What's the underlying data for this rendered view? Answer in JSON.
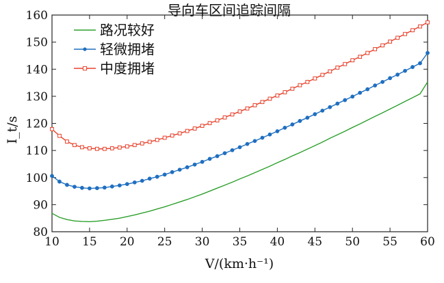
{
  "chart_data": {
    "type": "line",
    "title": "导向车区间追踪间隔",
    "xlabel": "V/(km·h⁻¹)",
    "ylabel": "I_t/s",
    "xlim": [
      10,
      60
    ],
    "ylim": [
      80,
      160
    ],
    "x_ticks": [
      10,
      15,
      20,
      25,
      30,
      35,
      40,
      45,
      50,
      55,
      60
    ],
    "y_ticks": [
      80,
      90,
      100,
      110,
      120,
      130,
      140,
      150,
      160
    ],
    "grid": false,
    "legend_position": "top-left",
    "x": [
      10,
      11,
      12,
      13,
      14,
      15,
      16,
      17,
      18,
      19,
      20,
      21,
      22,
      23,
      24,
      25,
      26,
      27,
      28,
      29,
      30,
      31,
      32,
      33,
      34,
      35,
      36,
      37,
      38,
      39,
      40,
      41,
      42,
      43,
      44,
      45,
      46,
      47,
      48,
      49,
      50,
      51,
      52,
      53,
      54,
      55,
      56,
      57,
      58,
      59,
      60
    ],
    "series": [
      {
        "name": "路况较好",
        "color": "#2ca02c",
        "marker": "none",
        "values": [
          86.8,
          85.3,
          84.5,
          84.0,
          83.8,
          83.7,
          83.9,
          84.2,
          84.6,
          85.0,
          85.6,
          86.2,
          86.9,
          87.6,
          88.4,
          89.2,
          90.1,
          91.0,
          91.9,
          92.9,
          93.9,
          95.0,
          96.1,
          97.2,
          98.3,
          99.5,
          100.6,
          101.8,
          103.0,
          104.2,
          105.5,
          106.7,
          108.0,
          109.2,
          110.5,
          111.8,
          113.1,
          114.5,
          115.8,
          117.1,
          118.5,
          119.8,
          121.2,
          122.6,
          123.9,
          125.3,
          126.7,
          128.1,
          129.5,
          130.9,
          135.3
        ]
      },
      {
        "name": "轻微拥堵",
        "color": "#1f6fc0",
        "marker": "circle",
        "values": [
          100.6,
          98.5,
          97.3,
          96.6,
          96.2,
          96.0,
          96.1,
          96.3,
          96.7,
          97.1,
          97.6,
          98.2,
          98.8,
          99.6,
          100.3,
          101.1,
          102.0,
          102.9,
          103.8,
          104.8,
          105.8,
          106.9,
          107.9,
          109.0,
          110.1,
          111.2,
          112.4,
          113.5,
          114.7,
          115.9,
          117.1,
          118.4,
          119.6,
          120.9,
          122.1,
          123.4,
          124.7,
          126.0,
          127.3,
          128.6,
          129.9,
          131.3,
          132.6,
          134.0,
          135.3,
          136.7,
          138.0,
          139.4,
          140.8,
          142.2,
          146.0
        ]
      },
      {
        "name": "中度拥堵",
        "color": "#e8402a",
        "marker": "square",
        "values": [
          117.9,
          115.4,
          113.3,
          112.0,
          111.2,
          110.8,
          110.6,
          110.6,
          110.8,
          111.1,
          111.5,
          112.0,
          112.6,
          113.2,
          113.9,
          114.7,
          115.5,
          116.3,
          117.2,
          118.1,
          119.1,
          120.1,
          121.1,
          122.2,
          123.3,
          124.4,
          125.5,
          126.7,
          127.9,
          129.1,
          130.3,
          131.5,
          132.8,
          134.1,
          135.3,
          136.6,
          137.9,
          139.2,
          140.6,
          141.9,
          143.3,
          144.6,
          146.0,
          147.4,
          148.8,
          150.2,
          151.6,
          153.0,
          154.4,
          155.8,
          157.3
        ]
      }
    ]
  }
}
